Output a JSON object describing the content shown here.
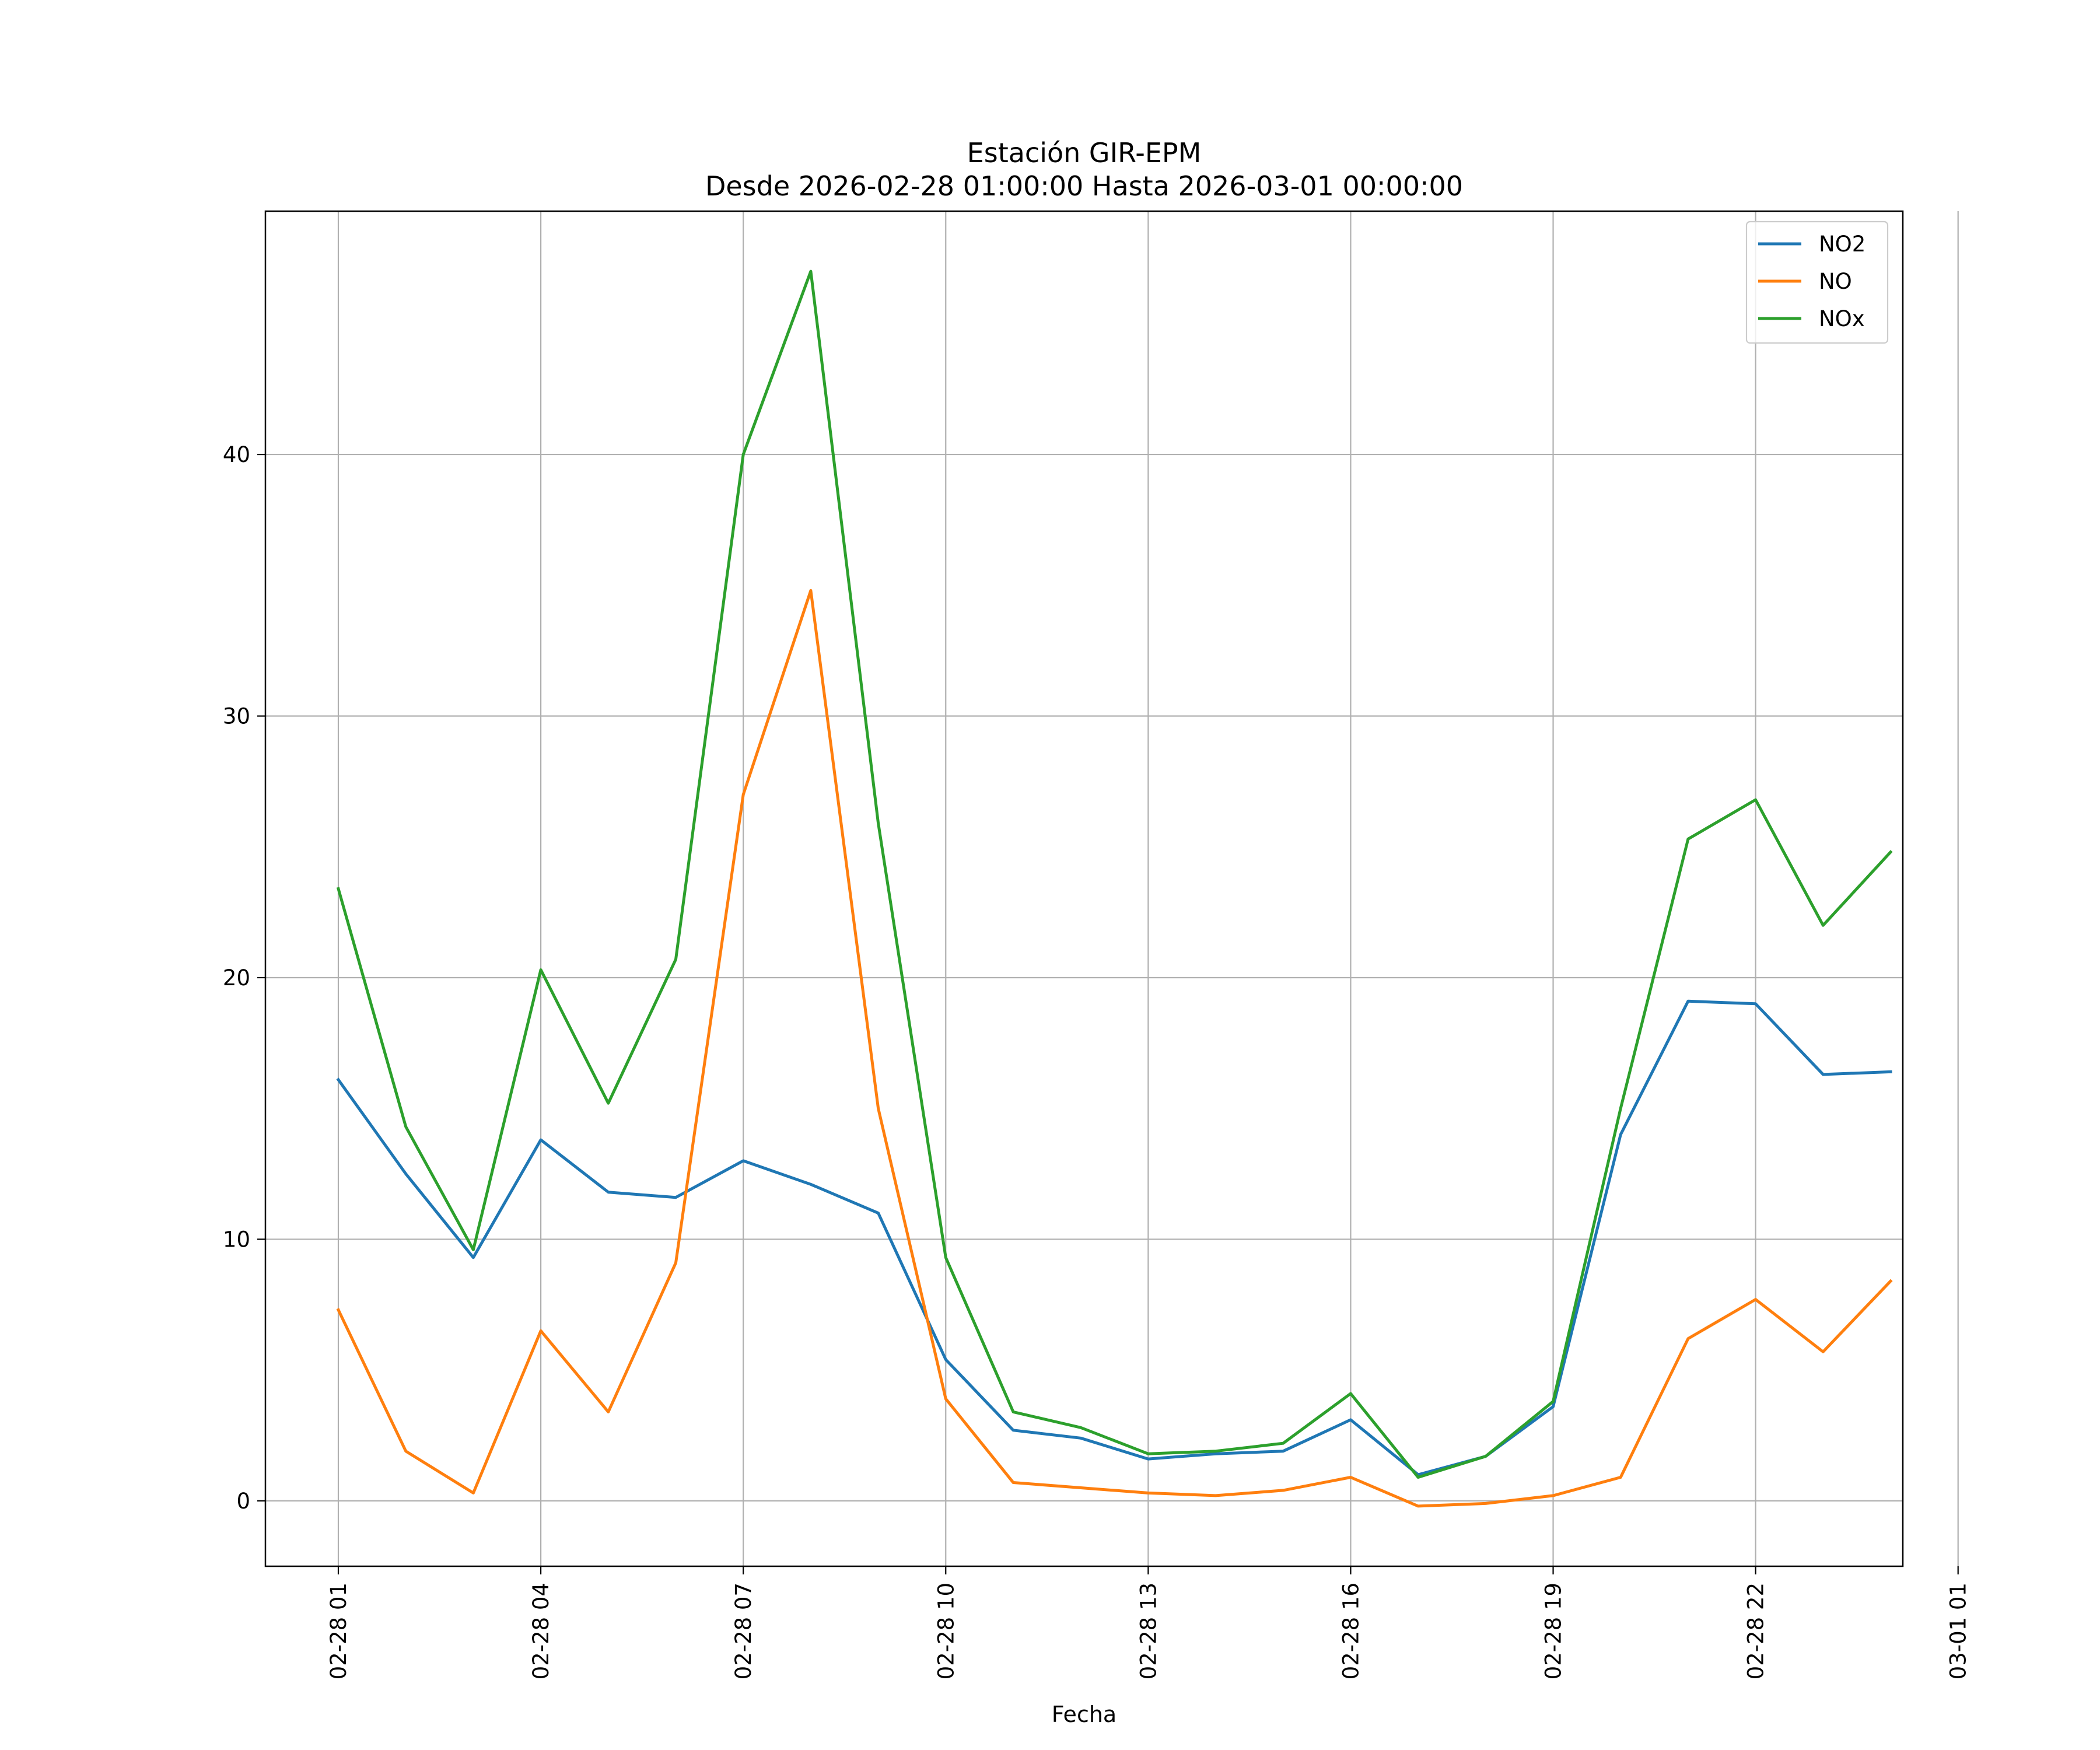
{
  "chart_data": {
    "type": "line",
    "title": "Estación GIR-EPM",
    "subtitle": "Desde 2026-02-28 01:00:00 Hasta 2026-03-01 00:00:00",
    "xlabel": "Fecha",
    "ylabel": "",
    "x": [
      "02-28 01",
      "02-28 02",
      "02-28 03",
      "02-28 04",
      "02-28 05",
      "02-28 06",
      "02-28 07",
      "02-28 08",
      "02-28 09",
      "02-28 10",
      "02-28 11",
      "02-28 12",
      "02-28 13",
      "02-28 14",
      "02-28 15",
      "02-28 16",
      "02-28 17",
      "02-28 18",
      "02-28 19",
      "02-28 20",
      "02-28 21",
      "02-28 22",
      "02-28 23",
      "03-01 00"
    ],
    "x_ticks": [
      "02-28 01",
      "02-28 04",
      "02-28 07",
      "02-28 10",
      "02-28 13",
      "02-28 16",
      "02-28 19",
      "02-28 22",
      "03-01 01"
    ],
    "y_ticks": [
      0,
      10,
      20,
      30,
      40
    ],
    "ylim": [
      -2.5,
      49.3
    ],
    "grid": true,
    "legend": "top-right",
    "series": [
      {
        "name": "NO2",
        "color": "#1f77b4",
        "values": [
          16.1,
          12.5,
          9.3,
          13.8,
          11.8,
          11.6,
          13.0,
          12.1,
          11.0,
          5.4,
          2.7,
          2.4,
          1.6,
          1.8,
          1.9,
          3.1,
          1.0,
          1.7,
          3.6,
          14.0,
          19.1,
          19.0,
          16.3,
          16.4
        ]
      },
      {
        "name": "NO",
        "color": "#ff7f0e",
        "values": [
          7.3,
          1.9,
          0.3,
          6.5,
          3.4,
          9.1,
          27.0,
          34.8,
          15.0,
          3.9,
          0.7,
          0.5,
          0.3,
          0.2,
          0.4,
          0.9,
          -0.2,
          -0.1,
          0.2,
          0.9,
          6.2,
          7.7,
          5.7,
          8.4
        ]
      },
      {
        "name": "NOx",
        "color": "#2ca02c",
        "values": [
          23.4,
          14.3,
          9.6,
          20.3,
          15.2,
          20.7,
          40.0,
          47.0,
          25.9,
          9.3,
          3.4,
          2.8,
          1.8,
          1.9,
          2.2,
          4.1,
          0.9,
          1.7,
          3.8,
          15.0,
          25.3,
          26.8,
          22.0,
          24.8
        ]
      }
    ]
  }
}
